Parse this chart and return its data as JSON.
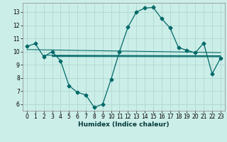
{
  "title": "",
  "xlabel": "Humidex (Indice chaleur)",
  "bg_color": "#cceee8",
  "grid_color": "#aad4cc",
  "line_color": "#006868",
  "xlim": [
    -0.5,
    23.5
  ],
  "ylim": [
    5.5,
    13.7
  ],
  "xticks": [
    0,
    1,
    2,
    3,
    4,
    5,
    6,
    7,
    8,
    9,
    10,
    11,
    12,
    13,
    14,
    15,
    16,
    17,
    18,
    19,
    20,
    21,
    22,
    23
  ],
  "yticks": [
    6,
    7,
    8,
    9,
    10,
    11,
    12,
    13
  ],
  "main_curve": {
    "x": [
      0,
      1,
      2,
      3,
      4,
      5,
      6,
      7,
      8,
      9,
      10,
      11,
      12,
      13,
      14,
      15,
      16,
      17,
      18,
      19,
      20,
      21,
      22,
      23
    ],
    "y": [
      10.4,
      10.6,
      9.6,
      10.0,
      9.3,
      7.4,
      6.9,
      6.7,
      5.75,
      6.0,
      7.9,
      10.0,
      11.85,
      13.0,
      13.3,
      13.35,
      12.5,
      11.8,
      10.3,
      10.1,
      9.9,
      10.65,
      8.3,
      9.5
    ]
  },
  "flat_lines": [
    {
      "x": [
        0,
        23
      ],
      "y": [
        10.15,
        9.92
      ]
    },
    {
      "x": [
        2,
        23
      ],
      "y": [
        9.72,
        9.68
      ]
    },
    {
      "x": [
        3,
        23
      ],
      "y": [
        9.68,
        9.65
      ]
    },
    {
      "x": [
        3,
        23
      ],
      "y": [
        9.62,
        9.6
      ]
    }
  ],
  "marker": "D",
  "markersize": 2.5,
  "linewidth": 0.9,
  "tick_fontsize": 5.5,
  "xlabel_fontsize": 6.5
}
